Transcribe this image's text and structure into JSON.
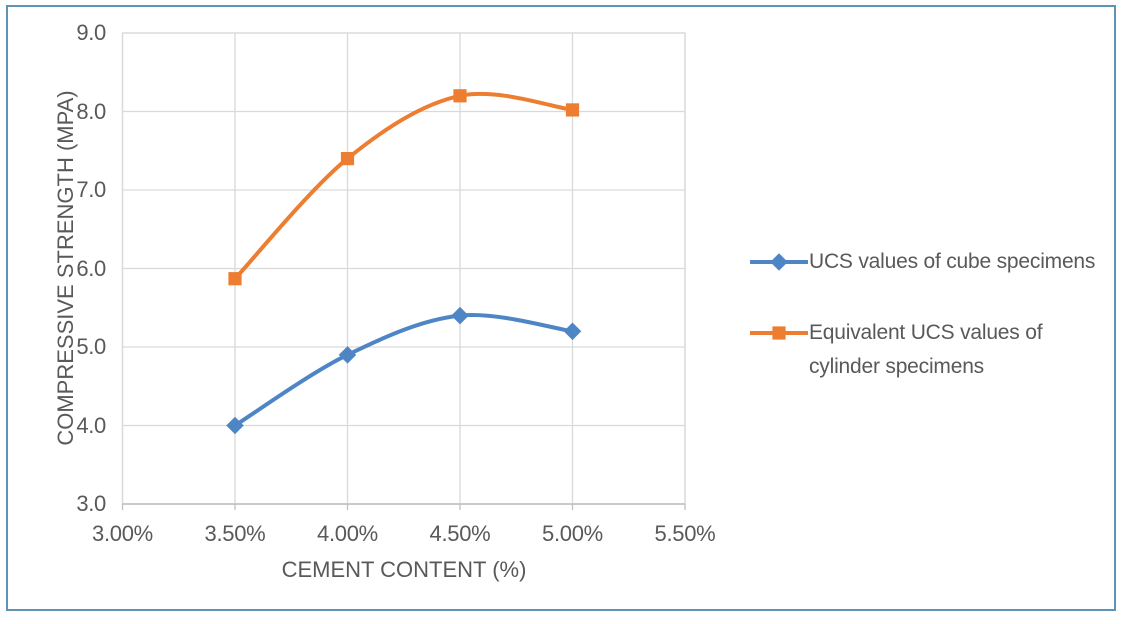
{
  "page": {
    "background": "#FFFFFF",
    "frame_border_color": "#5E93B8"
  },
  "chart_data": {
    "type": "line",
    "smooth": true,
    "grid": true,
    "title": "",
    "xlabel": "CEMENT CONTENT (%)",
    "ylabel": "COMPRESSIVE STRENGTH (MPA)",
    "xlim": [
      3.0,
      5.5
    ],
    "ylim": [
      3.0,
      9.0
    ],
    "x_ticks": [
      {
        "value": 3.0,
        "label": "3.00%"
      },
      {
        "value": 3.5,
        "label": "3.50%"
      },
      {
        "value": 4.0,
        "label": "4.00%"
      },
      {
        "value": 4.5,
        "label": "4.50%"
      },
      {
        "value": 5.0,
        "label": "5.00%"
      },
      {
        "value": 5.5,
        "label": "5.50%"
      }
    ],
    "y_ticks": [
      {
        "value": 3.0,
        "label": "3.0"
      },
      {
        "value": 4.0,
        "label": "4.0"
      },
      {
        "value": 5.0,
        "label": "5.0"
      },
      {
        "value": 6.0,
        "label": "6.0"
      },
      {
        "value": 7.0,
        "label": "7.0"
      },
      {
        "value": 8.0,
        "label": "8.0"
      },
      {
        "value": 9.0,
        "label": "9.0"
      }
    ],
    "x": [
      3.5,
      4.0,
      4.5,
      5.0
    ],
    "series": [
      {
        "name": "UCS values of cube specimens",
        "color": "#4E86C5",
        "marker": "diamond",
        "values": [
          4.0,
          4.9,
          5.4,
          5.2
        ]
      },
      {
        "name": "Equivalent UCS values of cylinder specimens",
        "color": "#ED7D31",
        "marker": "square",
        "values": [
          5.87,
          7.4,
          8.2,
          8.02
        ]
      }
    ],
    "legend_position": "right-center",
    "colors": {
      "gridline": "#D9D9D9",
      "plot_border": "#D9D9D9",
      "axis_line": "#BFBFBF",
      "text": "#595959"
    }
  }
}
